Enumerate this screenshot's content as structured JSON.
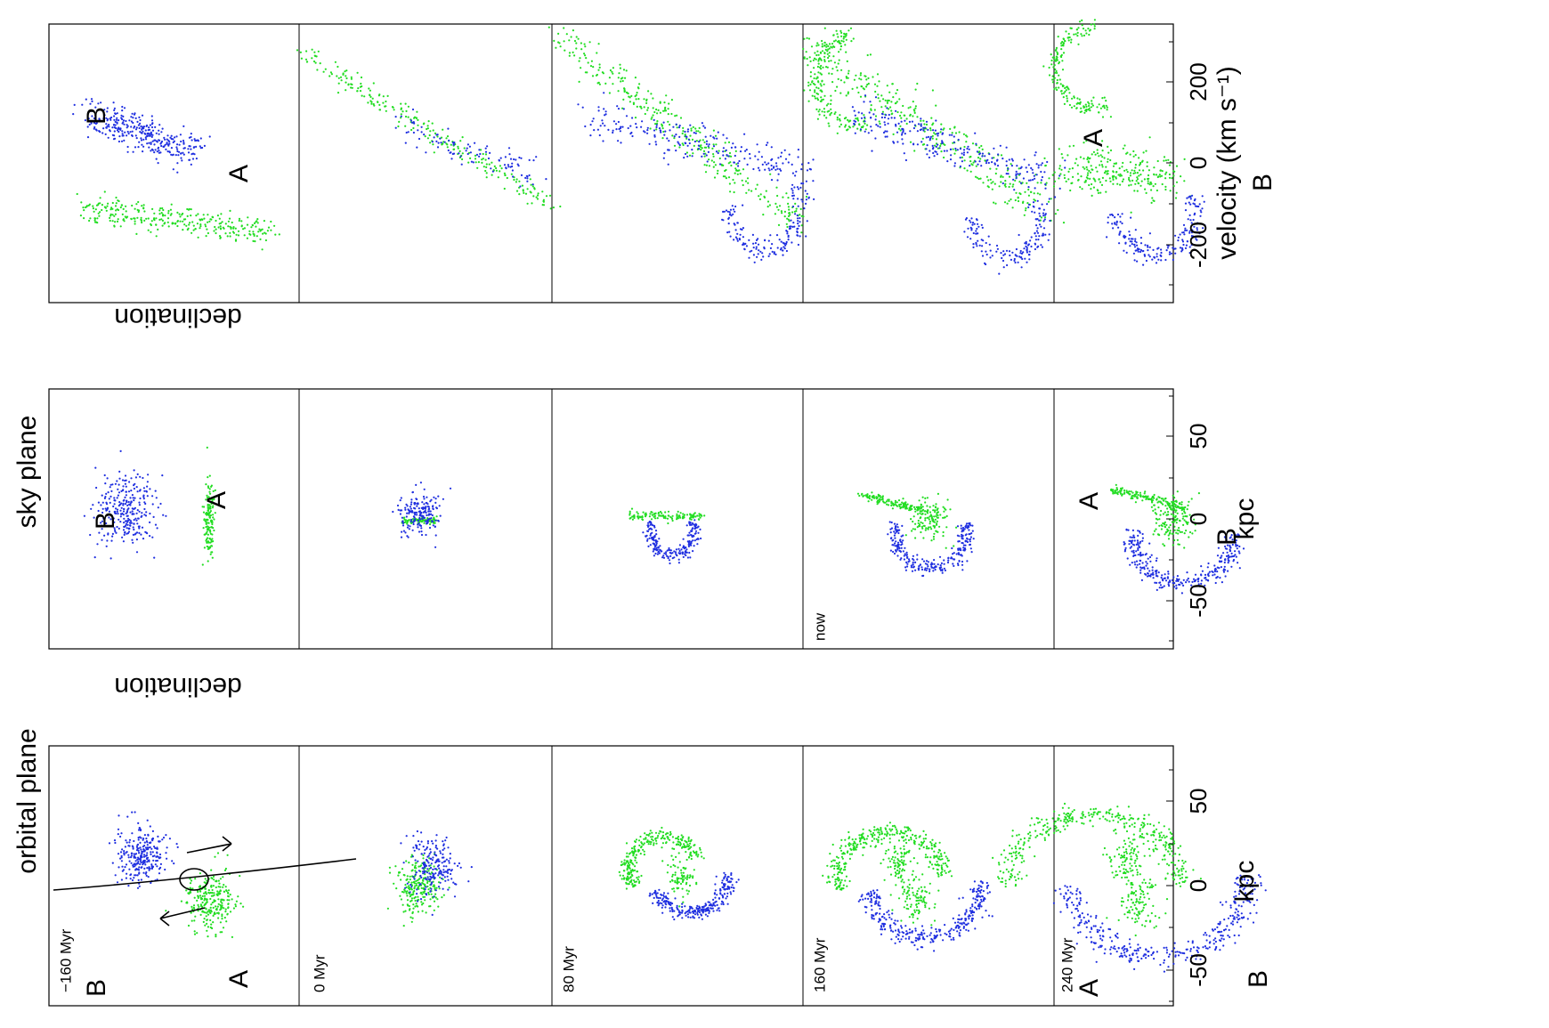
{
  "chart_data": {
    "type": "scatter",
    "columns": [
      {
        "title": "orbital plane",
        "xlabel": "kpc",
        "ylabel": "",
        "xticks": [
          "-50",
          "0",
          "50"
        ]
      },
      {
        "title": "sky plane",
        "xlabel": "kpc",
        "ylabel": "declination",
        "xticks": [
          "-50",
          "0",
          "50"
        ]
      },
      {
        "title": "",
        "xlabel": "velocity (km s⁻¹)",
        "ylabel": "declination",
        "xticks": [
          "-200",
          "0",
          "200"
        ]
      }
    ],
    "time_labels": [
      "−160 Myr",
      "0 Myr",
      "80 Myr",
      "160 Myr",
      "240 Myr"
    ],
    "sky_now_label": "now",
    "galaxy_labels": {
      "a": "A",
      "b": "B"
    },
    "colors": {
      "galaxy_a": "#22dd22",
      "galaxy_b": "#1f2fe0"
    },
    "xlim_orbital": [
      -80,
      80
    ],
    "xlim_sky": [
      -80,
      80
    ],
    "xlim_velocity": [
      -350,
      350
    ],
    "series": [
      {
        "name": "A",
        "color": "#22dd22"
      },
      {
        "name": "B",
        "color": "#1f2fe0"
      }
    ]
  }
}
